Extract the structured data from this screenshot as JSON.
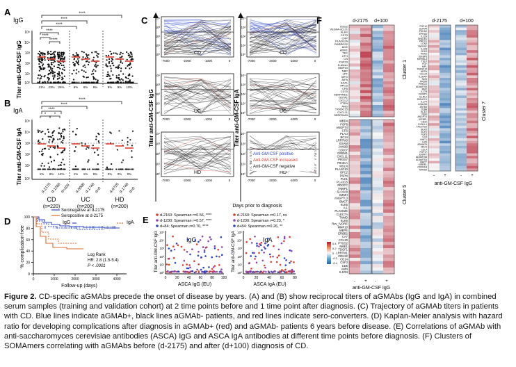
{
  "caption": {
    "label": "Figure 2.",
    "text": "CD-specific aGMAbs precede the onset of disease by years. (A) and (B) show reciprocal titers of aGMAbs (IgG and IgA) in combined serum samples (training and validation cohort) at 2 time points before and 1 time point after diagnosis. (C) Trajectory of aGMAb titers in patients with CD. Blue lines indicate aGMAb+, black lines aGMAb- patients, and red lines indicate sero-converters. (D) Kaplan-Meier analysis with hazard ratio for developing complications after diagnosis in aGMAb+ (red) and aGMAb- patients 6 years before disease. (E) Correlations of aGMAb with anti-saccharomyces cerevisiae antibodies (ASCA) IgG and ASCA IgA antibodies at different time points before diagnosis. (F) Clusters of SOMAmers correlating with aGMAbs before (d-2175) and after (d+100) diagnosis of CD."
  },
  "panelA": {
    "letter": "A",
    "isotype": "IgG",
    "ylabel": "Titer anti-GM-CSF IgG",
    "yticks": [
      "10⁵",
      "10⁴",
      "10³",
      "10²",
      "10¹",
      "10⁰"
    ],
    "sig": [
      "****",
      "****",
      "****",
      "****",
      "****",
      "****"
    ],
    "pct": [
      "21%",
      "23%",
      "25%",
      "6%",
      "6%",
      "6%",
      "9%",
      "9%",
      "10%"
    ]
  },
  "panelB": {
    "letter": "B",
    "isotype": "IgA",
    "ylabel": "Titer anti-GM-CSF IgA",
    "yticks": [
      "10⁵",
      "10⁴",
      "10³",
      "10²",
      "10¹",
      "10⁰"
    ],
    "sig": [
      "****",
      "****",
      "****",
      "*",
      "*",
      "*"
    ],
    "pct": [
      "1%",
      "9%",
      "12%",
      "1%",
      "1%",
      "5%",
      "0%",
      "0%",
      "0%"
    ],
    "xcats": [
      "d-2175",
      "d-1260",
      "d+100",
      "d-5000",
      "d-1740",
      "d+0",
      "d-9725",
      "d-1740",
      "d+0"
    ],
    "groups": [
      {
        "name": "CD",
        "n": "(n=220)"
      },
      {
        "name": "UC",
        "n": "(n=200)"
      },
      {
        "name": "HD",
        "n": "(n=200)"
      }
    ]
  },
  "panelC": {
    "letter": "C",
    "ylabel_left": "Titer anti-GM-CSF IgG",
    "ylabel_right": "Titer anti-GM-CSF IgA",
    "yticks": [
      "10⁴",
      "10³",
      "10²",
      "10¹",
      "10⁰"
    ],
    "xticks": [
      "-7000",
      "-2000",
      "-1000",
      "0"
    ],
    "xlabel": "Days prior to diagnosis",
    "subplots": [
      "CD",
      "UC",
      "HD"
    ],
    "legend": [
      {
        "label": "Anti-GM-CSF positive",
        "color": "#2b45c9"
      },
      {
        "label": "Anti-GM-CSF increased",
        "color": "#e03c2c"
      },
      {
        "label": "Anti-GM-CSF negative",
        "color": "#111111"
      }
    ]
  },
  "panelD": {
    "letter": "D",
    "ylabel": "% complication-free",
    "xlabel": "Follow-up (days)",
    "yticks": [
      "100",
      "80",
      "60",
      "40",
      "20",
      "0"
    ],
    "xticks": [
      "0",
      "1000",
      "2000",
      "3000",
      "4000"
    ],
    "legend_neg": "Seronegative at d-2175",
    "legend_pos": "Seropositive at d-2175",
    "lab_igg": "IgG",
    "lab_iga": "IgA",
    "stat1": "Log Rank",
    "stat2": "HR: 2.8 (1.5-5.4)",
    "stat3": "P < .0001",
    "colors": {
      "neg": "#2b45c9",
      "pos": "#e26a2c"
    }
  },
  "panelE": {
    "letter": "E",
    "leg_igg": [
      "d-2160: Spearman r=0.56, ****",
      "d-1230: Spearman r=0.57, ****",
      "d+84: Spearman r=0.70, ****"
    ],
    "leg_iga": [
      "d-2160: Spearman r=0.17, ns",
      "d-1230: Spearman r=0.23, *",
      "d+84: Spearman r=0.26, **"
    ],
    "title_igg": "IgG",
    "title_iga": "IgA",
    "ylabel_igg": "Titer anti-GM-CSF IgG",
    "ylabel_iga": "Titer anti-GM-CSF IgA",
    "xlabel_igg": "ASCA IgG (EU)",
    "xlabel_iga": "ASCA IgA (EU)",
    "xticks_igg": [
      "0",
      "20",
      "40",
      "60",
      "80",
      "100"
    ],
    "xticks_iga": [
      "0",
      "20",
      "40",
      "60",
      "80"
    ],
    "yticks": [
      "10⁵",
      "10⁴",
      "10³",
      "10²",
      "10¹",
      "10⁰"
    ]
  },
  "panelF": {
    "letter": "F",
    "col1": "d-2175",
    "col2": "d+100",
    "col3": "d-2175",
    "col4": "d+100",
    "cluster1": "Cluster 1",
    "cluster5": "Cluster 5",
    "cluster7": "Cluster 7",
    "xlabel": "anti-GM-CSF IgG",
    "xlabel2": "anti-GM-CSF IgG",
    "minus": "-",
    "plus": "+",
    "scale": [
      "0.4",
      "0.2",
      "0",
      "-0.2",
      "-0.4"
    ],
    "genes_left_top": [
      "DSG2",
      "VEGFA-dc121",
      "PLPP",
      "CST3",
      "CRP",
      "PLA2G2A",
      "RARRES2",
      "ACE",
      "ADM1",
      "TEK",
      "CFH",
      "CN",
      "FGF23",
      "D-dimer",
      "MMP10",
      "NBP",
      "LPF",
      "MFG",
      "AIFA",
      "SAA1",
      "APCS",
      "CFB",
      "CD70",
      "SERPIND1",
      "GSTA1",
      "CXCL2",
      "PTEN",
      "ANG",
      "TXNDC15",
      "CXCL11",
      "SERPINA3"
    ],
    "genes_left_bot": [
      "MBD4",
      "FGF8",
      "ANGPT4",
      "CFB",
      "PLAU",
      "BC24",
      "LRRTM3",
      "ESAM",
      "JAM2B",
      "CD207",
      "GREM1",
      "CXCL11",
      "PRSS7",
      "PIK3CA",
      "MSLN",
      "PLA2G10",
      "GFC2",
      "PSPN",
      "PLK1",
      "PLA2G5",
      "PDGFC",
      "TNMP1",
      "SLC6A8",
      "GZMH",
      "ANGPTL3",
      "BMCT",
      "KLK5",
      "IL1",
      "PLA2G2E",
      "CLEC7A",
      "TNMD",
      "KLK6",
      "Rev_IVORE",
      "MMP10",
      "MEPE",
      "ERBB2",
      "CA7",
      "CCL20",
      "PTGS2",
      "NME1",
      "TDGF1",
      "LRRTM1",
      "CDH22",
      "CD14",
      "CSF3",
      "CD5",
      "AMN",
      "IL1RN"
    ],
    "genes_right": [
      "FGF10",
      "OLFM4",
      "PDCK2",
      "EPHA3",
      "IL12A",
      "DNAJB1",
      "PRDX1",
      "LCN2",
      "TNFRSF",
      "IL12B",
      "CDK3",
      "PON1",
      "IGFBP5",
      "KIRREL3",
      "TSLP",
      "FGF",
      "MPL",
      "TNFSF12",
      "ARTN",
      "CCL24",
      "IL1RAP",
      "NOS",
      "PRDM",
      "PRKCG",
      "ADAMTS5",
      "BMX",
      "IL17B",
      "CRISP1",
      "IL1RL2",
      "SIGLEC1",
      "IL17A",
      "LGALS4",
      "ZBTB3",
      "CD8A",
      "ACE2",
      "NGR",
      "ANGPT4",
      "IGFBPL",
      "CD22",
      "DYNLL1",
      "TACSTD2",
      "GLRX",
      "SCP2",
      "FGF5",
      "OX3",
      "HINT1",
      "IL2R",
      "ADAM23",
      "MICA",
      "CCL4",
      "FGF17",
      "ENPP7",
      "ADAMTS8",
      "ADAMTS4",
      "BMCT",
      "KIRREL",
      "CDKN1B",
      "KPNA2"
    ]
  }
}
